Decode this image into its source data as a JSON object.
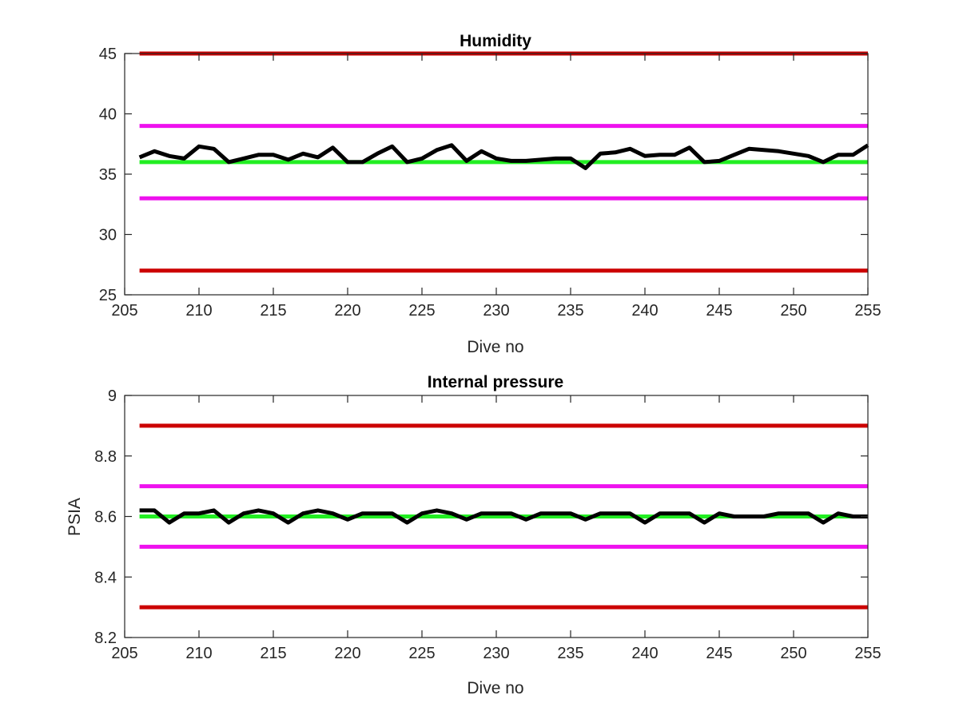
{
  "chart_data": [
    {
      "type": "line",
      "title": "Humidity",
      "xlabel": "Dive no",
      "ylabel": "",
      "xlim": [
        205,
        255
      ],
      "ylim": [
        25,
        45
      ],
      "xticks": [
        "205",
        "210",
        "215",
        "220",
        "225",
        "230",
        "235",
        "240",
        "245",
        "250",
        "255"
      ],
      "yticks": [
        "25",
        "30",
        "35",
        "40",
        "45"
      ],
      "grid": false,
      "x": [
        206,
        207,
        208,
        209,
        210,
        211,
        212,
        213,
        214,
        215,
        216,
        217,
        218,
        219,
        220,
        221,
        222,
        223,
        224,
        225,
        226,
        227,
        228,
        229,
        230,
        231,
        232,
        233,
        234,
        235,
        236,
        237,
        238,
        239,
        240,
        241,
        242,
        243,
        244,
        245,
        246,
        247,
        248,
        249,
        250,
        251,
        252,
        253,
        254,
        255
      ],
      "series": [
        {
          "color": "#000000",
          "values": [
            36.4,
            36.9,
            36.5,
            36.3,
            37.3,
            37.1,
            36.0,
            36.3,
            36.6,
            36.6,
            36.2,
            36.7,
            36.4,
            37.2,
            36.0,
            36.0,
            36.7,
            37.3,
            36.0,
            36.3,
            37.0,
            37.4,
            36.1,
            36.9,
            36.3,
            36.1,
            36.1,
            36.2,
            36.3,
            36.3,
            35.5,
            36.7,
            36.8,
            37.1,
            36.5,
            36.6,
            36.6,
            37.2,
            36.0,
            36.1,
            36.6,
            37.1,
            37.0,
            36.9,
            36.7,
            36.5,
            36.0,
            36.6,
            36.6,
            37.4
          ]
        }
      ],
      "reference_lines": [
        {
          "y": 45,
          "color": "#cc0000"
        },
        {
          "y": 39,
          "color": "#ee11ee"
        },
        {
          "y": 36,
          "color": "#22ee22"
        },
        {
          "y": 33,
          "color": "#ee11ee"
        },
        {
          "y": 27,
          "color": "#cc0000"
        }
      ]
    },
    {
      "type": "line",
      "title": "Internal pressure",
      "xlabel": "Dive no",
      "ylabel": "PSIA",
      "xlim": [
        205,
        255
      ],
      "ylim": [
        8.2,
        9
      ],
      "xticks": [
        "205",
        "210",
        "215",
        "220",
        "225",
        "230",
        "235",
        "240",
        "245",
        "250",
        "255"
      ],
      "yticks": [
        "8.2",
        "8.4",
        "8.6",
        "8.8",
        "9"
      ],
      "grid": false,
      "x": [
        206,
        207,
        208,
        209,
        210,
        211,
        212,
        213,
        214,
        215,
        216,
        217,
        218,
        219,
        220,
        221,
        222,
        223,
        224,
        225,
        226,
        227,
        228,
        229,
        230,
        231,
        232,
        233,
        234,
        235,
        236,
        237,
        238,
        239,
        240,
        241,
        242,
        243,
        244,
        245,
        246,
        247,
        248,
        249,
        250,
        251,
        252,
        253,
        254,
        255
      ],
      "series": [
        {
          "color": "#000000",
          "values": [
            8.62,
            8.62,
            8.58,
            8.61,
            8.61,
            8.62,
            8.58,
            8.61,
            8.62,
            8.61,
            8.58,
            8.61,
            8.62,
            8.61,
            8.59,
            8.61,
            8.61,
            8.61,
            8.58,
            8.61,
            8.62,
            8.61,
            8.59,
            8.61,
            8.61,
            8.61,
            8.59,
            8.61,
            8.61,
            8.61,
            8.59,
            8.61,
            8.61,
            8.61,
            8.58,
            8.61,
            8.61,
            8.61,
            8.58,
            8.61,
            8.6,
            8.6,
            8.6,
            8.61,
            8.61,
            8.61,
            8.58,
            8.61,
            8.6,
            8.6
          ]
        }
      ],
      "reference_lines": [
        {
          "y": 8.9,
          "color": "#cc0000"
        },
        {
          "y": 8.7,
          "color": "#ee11ee"
        },
        {
          "y": 8.6,
          "color": "#22ee22"
        },
        {
          "y": 8.5,
          "color": "#ee11ee"
        },
        {
          "y": 8.3,
          "color": "#cc0000"
        }
      ]
    }
  ]
}
